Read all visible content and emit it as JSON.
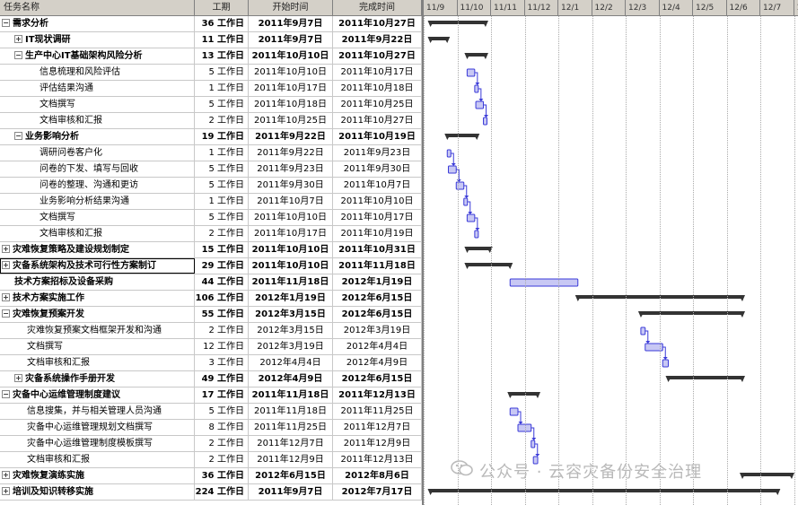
{
  "header": {
    "name": "任务名称",
    "duration": "工期",
    "start": "开始时间",
    "finish": "完成时间"
  },
  "timescale": [
    "11/9",
    "11/10",
    "11/11",
    "11/12",
    "12/1",
    "12/2",
    "12/3",
    "12/4",
    "12/5",
    "12/6",
    "12/7",
    "12/8"
  ],
  "rows": [
    {
      "name": "需求分析",
      "dur": "36 工作日",
      "start": "2011年9月7日",
      "finish": "2011年10月27日",
      "level": 0,
      "summary": true,
      "toggle": "−"
    },
    {
      "name": "IT现状调研",
      "dur": "11 工作日",
      "start": "2011年9月7日",
      "finish": "2011年9月22日",
      "level": 1,
      "summary": true,
      "toggle": "+"
    },
    {
      "name": "生产中心IT基础架构风险分析",
      "dur": "13 工作日",
      "start": "2011年10月10日",
      "finish": "2011年10月27日",
      "level": 1,
      "summary": true,
      "toggle": "−"
    },
    {
      "name": "信息梳理和风险评估",
      "dur": "5 工作日",
      "start": "2011年10月10日",
      "finish": "2011年10月17日",
      "level": 2,
      "summary": false
    },
    {
      "name": "评估结果沟通",
      "dur": "1 工作日",
      "start": "2011年10月17日",
      "finish": "2011年10月18日",
      "level": 2,
      "summary": false
    },
    {
      "name": "文档撰写",
      "dur": "5 工作日",
      "start": "2011年10月18日",
      "finish": "2011年10月25日",
      "level": 2,
      "summary": false
    },
    {
      "name": "文档审核和汇报",
      "dur": "2 工作日",
      "start": "2011年10月25日",
      "finish": "2011年10月27日",
      "level": 2,
      "summary": false
    },
    {
      "name": "业务影响分析",
      "dur": "19 工作日",
      "start": "2011年9月22日",
      "finish": "2011年10月19日",
      "level": 1,
      "summary": true,
      "toggle": "−"
    },
    {
      "name": "调研问卷客户化",
      "dur": "1 工作日",
      "start": "2011年9月22日",
      "finish": "2011年9月23日",
      "level": 2,
      "summary": false
    },
    {
      "name": "问卷的下发、填写与回收",
      "dur": "5 工作日",
      "start": "2011年9月23日",
      "finish": "2011年9月30日",
      "level": 2,
      "summary": false
    },
    {
      "name": "问卷的整理、沟通和更访",
      "dur": "5 工作日",
      "start": "2011年9月30日",
      "finish": "2011年10月7日",
      "level": 2,
      "summary": false
    },
    {
      "name": "业务影响分析结果沟通",
      "dur": "1 工作日",
      "start": "2011年10月7日",
      "finish": "2011年10月10日",
      "level": 2,
      "summary": false
    },
    {
      "name": "文档撰写",
      "dur": "5 工作日",
      "start": "2011年10月10日",
      "finish": "2011年10月17日",
      "level": 2,
      "summary": false
    },
    {
      "name": "文档审核和汇报",
      "dur": "2 工作日",
      "start": "2011年10月17日",
      "finish": "2011年10月19日",
      "level": 2,
      "summary": false
    },
    {
      "name": "灾难恢复策略及建设规划制定",
      "dur": "15 工作日",
      "start": "2011年10月10日",
      "finish": "2011年10月31日",
      "level": 0,
      "summary": true,
      "toggle": "+"
    },
    {
      "name": "灾备系统架构及技术可行性方案制订",
      "dur": "29 工作日",
      "start": "2011年10月10日",
      "finish": "2011年11月18日",
      "level": 0,
      "summary": true,
      "toggle": "+",
      "selected": true
    },
    {
      "name": "技术方案招标及设备采购",
      "dur": "44 工作日",
      "start": "2011年11月18日",
      "finish": "2012年1月19日",
      "level": 0,
      "summary": false,
      "bold": true
    },
    {
      "name": "技术方案实施工作",
      "dur": "106 工作日",
      "start": "2012年1月19日",
      "finish": "2012年6月15日",
      "level": 0,
      "summary": true,
      "toggle": "+"
    },
    {
      "name": "灾难恢复预案开发",
      "dur": "55 工作日",
      "start": "2012年3月15日",
      "finish": "2012年6月15日",
      "level": 0,
      "summary": true,
      "toggle": "−"
    },
    {
      "name": "灾难恢复预案文档框架开发和沟通",
      "dur": "2 工作日",
      "start": "2012年3月15日",
      "finish": "2012年3月19日",
      "level": 1,
      "summary": false
    },
    {
      "name": "文档撰写",
      "dur": "12 工作日",
      "start": "2012年3月19日",
      "finish": "2012年4月4日",
      "level": 1,
      "summary": false
    },
    {
      "name": "文档审核和汇报",
      "dur": "3 工作日",
      "start": "2012年4月4日",
      "finish": "2012年4月9日",
      "level": 1,
      "summary": false
    },
    {
      "name": "灾备系统操作手册开发",
      "dur": "49 工作日",
      "start": "2012年4月9日",
      "finish": "2012年6月15日",
      "level": 1,
      "summary": true,
      "toggle": "+"
    },
    {
      "name": "灾备中心运维管理制度建议",
      "dur": "17 工作日",
      "start": "2011年11月18日",
      "finish": "2011年12月13日",
      "level": 0,
      "summary": true,
      "toggle": "−"
    },
    {
      "name": "信息搜集，并与相关管理人员沟通",
      "dur": "5 工作日",
      "start": "2011年11月18日",
      "finish": "2011年11月25日",
      "level": 1,
      "summary": false
    },
    {
      "name": "灾备中心运维管理规划文档撰写",
      "dur": "8 工作日",
      "start": "2011年11月25日",
      "finish": "2011年12月7日",
      "level": 1,
      "summary": false
    },
    {
      "name": "灾备中心运维管理制度模板撰写",
      "dur": "2 工作日",
      "start": "2011年12月7日",
      "finish": "2011年12月9日",
      "level": 1,
      "summary": false
    },
    {
      "name": "文档审核和汇报",
      "dur": "2 工作日",
      "start": "2011年12月9日",
      "finish": "2011年12月13日",
      "level": 1,
      "summary": false
    },
    {
      "name": "灾难恢复演练实施",
      "dur": "36 工作日",
      "start": "2012年6月15日",
      "finish": "2012年8月6日",
      "level": 0,
      "summary": true,
      "toggle": "+"
    },
    {
      "name": "培训及知识转移实施",
      "dur": "224 工作日",
      "start": "2011年9月7日",
      "finish": "2012年7月17日",
      "level": 0,
      "summary": true,
      "toggle": "+"
    }
  ],
  "watermark": "公众号 · 云容灾备份安全治理",
  "colors": {
    "bar": "#3a3ad8",
    "summary": "#333333",
    "header": "#d4d0c8"
  }
}
